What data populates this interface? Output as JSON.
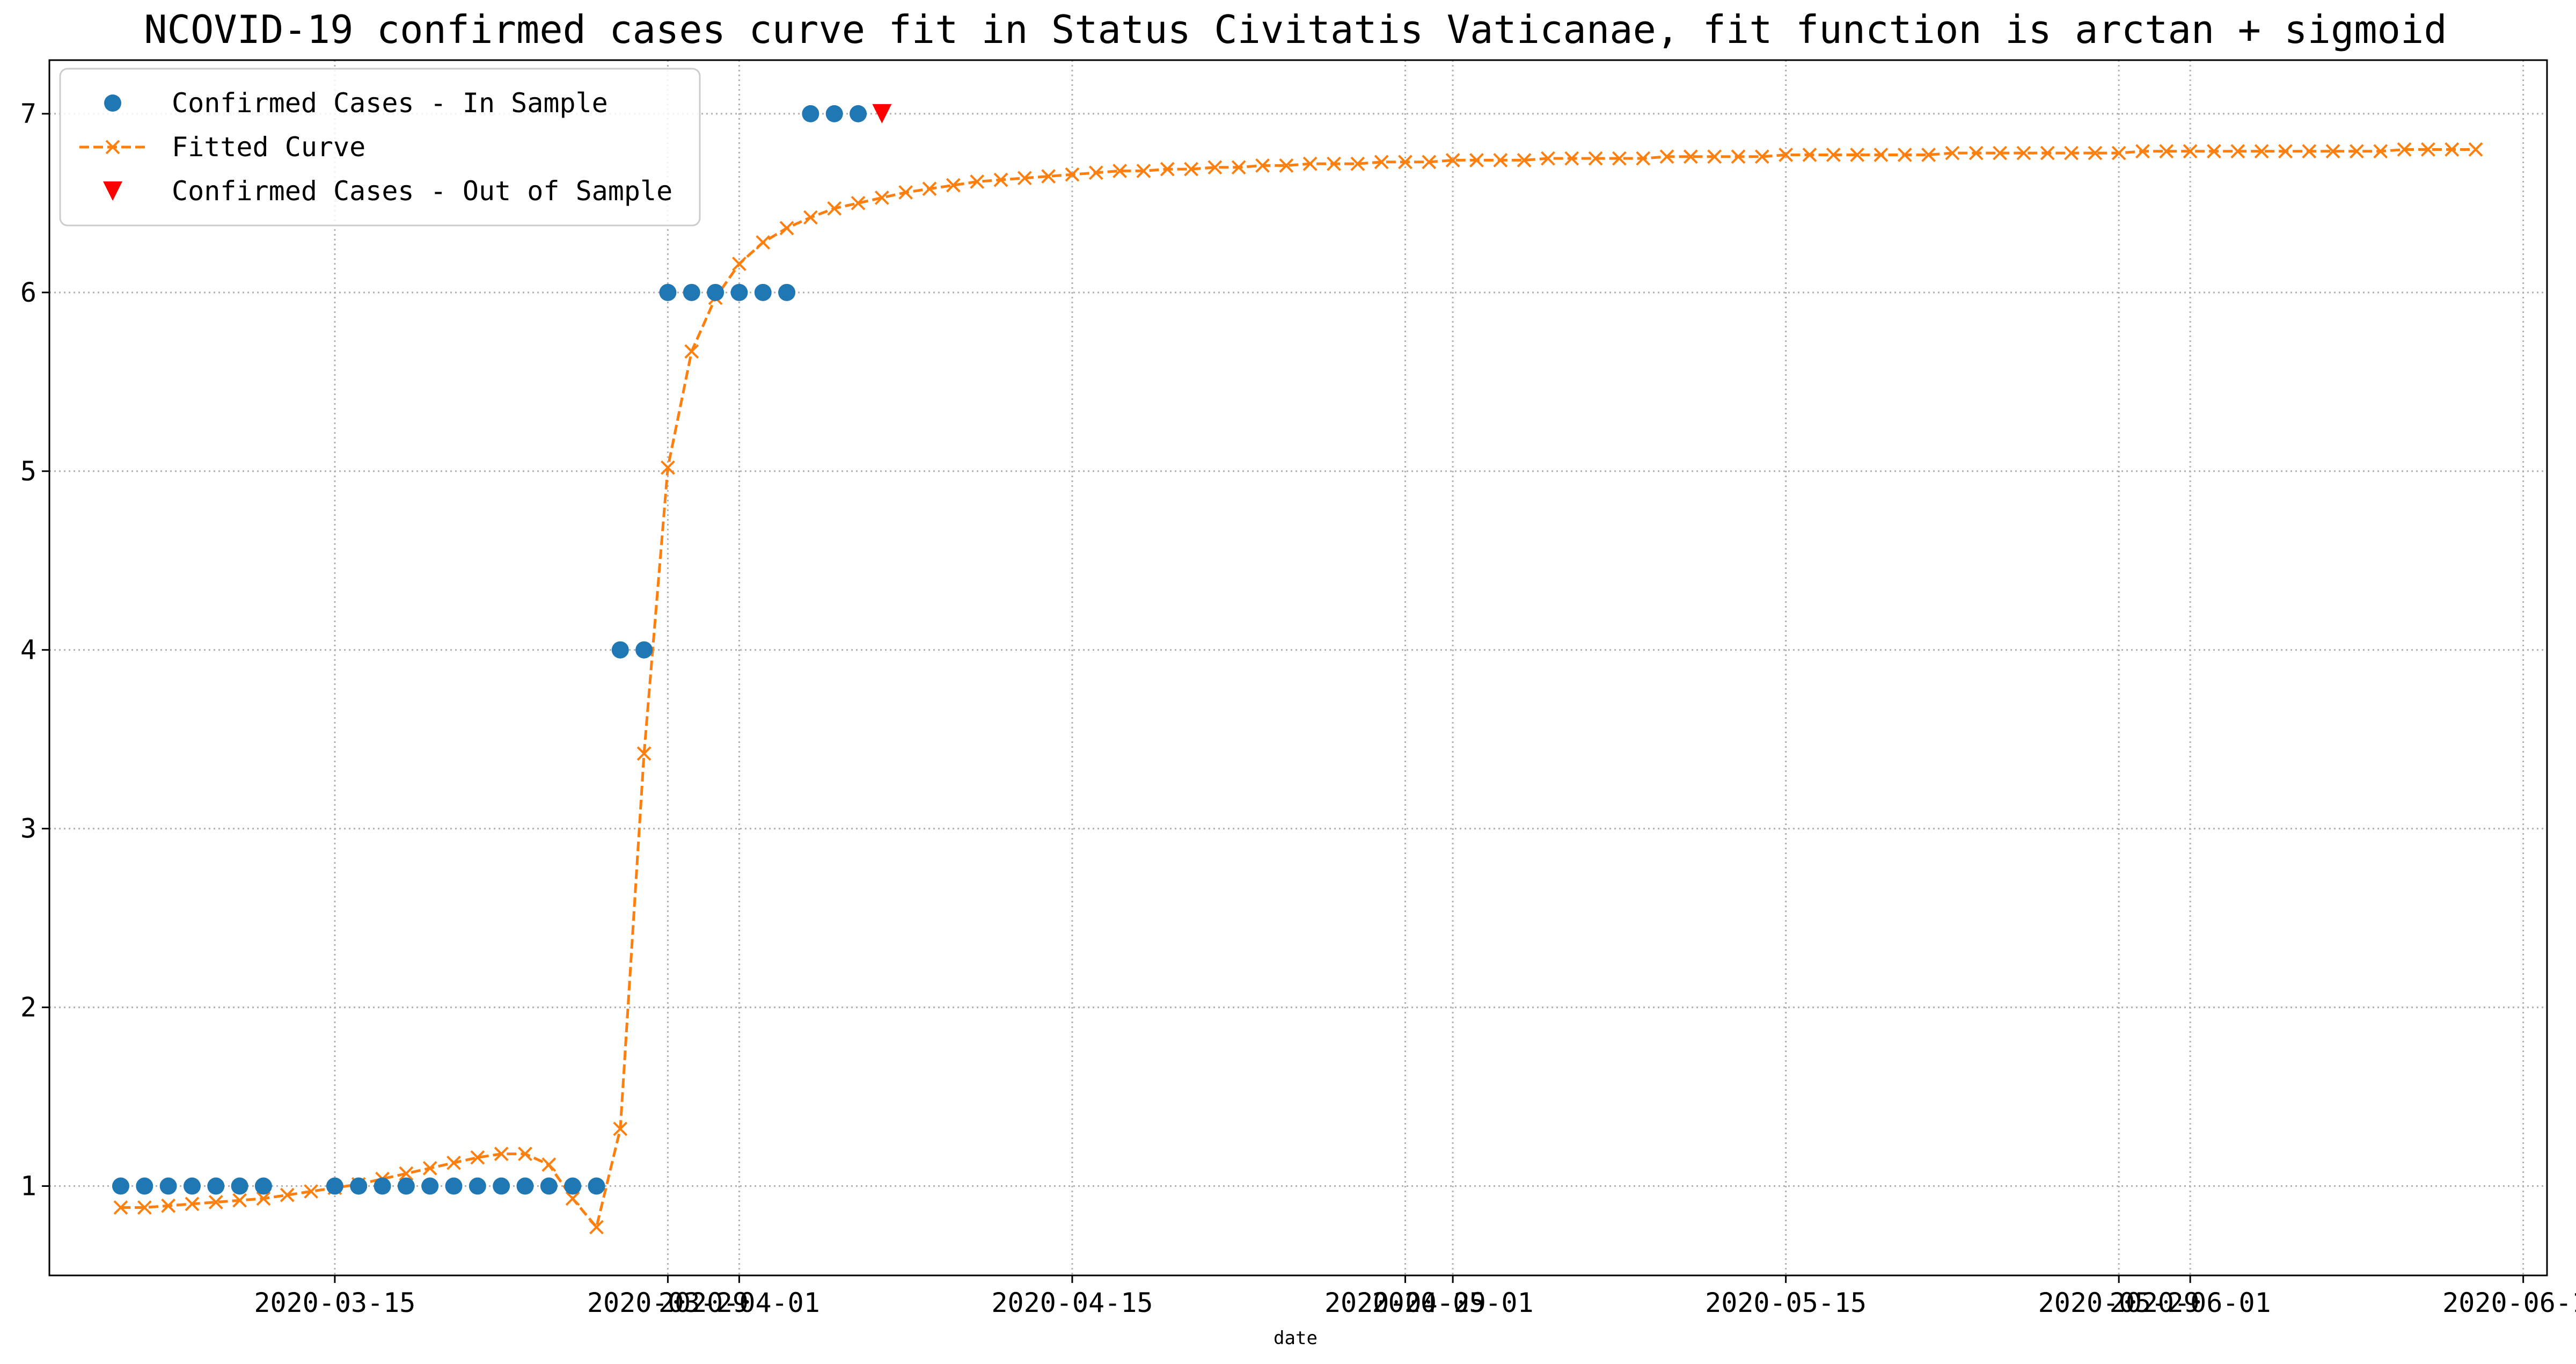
{
  "chart_data": {
    "type": "scatter",
    "title": "NCOVID-19 confirmed cases curve fit in Status Civitatis Vaticanae, fit function is arctan + sigmoid",
    "xlabel": "date",
    "ylabel": "",
    "x_start": "2020-03-06",
    "xlim": [
      "2020-03-03",
      "2020-06-16"
    ],
    "ylim": [
      0.5,
      7.3
    ],
    "yticks": [
      1,
      2,
      3,
      4,
      5,
      6,
      7
    ],
    "xticks": [
      {
        "date": "2020-03-15",
        "label": "2020-03-15"
      },
      {
        "date": "2020-03-29",
        "label": "2020-03-29"
      },
      {
        "date": "2020-04-01",
        "label": "2020-04-01"
      },
      {
        "date": "2020-04-15",
        "label": "2020-04-15"
      },
      {
        "date": "2020-04-29",
        "label": "2020-04-29"
      },
      {
        "date": "2020-05-01",
        "label": "2020-05-01"
      },
      {
        "date": "2020-05-15",
        "label": "2020-05-15"
      },
      {
        "date": "2020-05-29",
        "label": "2020-05-29"
      },
      {
        "date": "2020-06-01",
        "label": "2020-06-01"
      },
      {
        "date": "2020-06-15",
        "label": "2020-06-15"
      }
    ],
    "grid": true,
    "legend_position": "top-left",
    "series": [
      {
        "name": "Confirmed Cases - In Sample",
        "kind": "points",
        "marker": "circle",
        "color": "#1f77b4",
        "points": [
          [
            0,
            1
          ],
          [
            1,
            1
          ],
          [
            2,
            1
          ],
          [
            3,
            1
          ],
          [
            4,
            1
          ],
          [
            5,
            1
          ],
          [
            6,
            1
          ],
          [
            9,
            1
          ],
          [
            10,
            1
          ],
          [
            11,
            1
          ],
          [
            12,
            1
          ],
          [
            13,
            1
          ],
          [
            14,
            1
          ],
          [
            15,
            1
          ],
          [
            16,
            1
          ],
          [
            17,
            1
          ],
          [
            18,
            1
          ],
          [
            19,
            1
          ],
          [
            20,
            1
          ],
          [
            21,
            4
          ],
          [
            22,
            4
          ],
          [
            23,
            6
          ],
          [
            24,
            6
          ],
          [
            25,
            6
          ],
          [
            26,
            6
          ],
          [
            27,
            6
          ],
          [
            28,
            6
          ],
          [
            29,
            7
          ],
          [
            30,
            7
          ],
          [
            31,
            7
          ]
        ]
      },
      {
        "name": "Fitted Curve",
        "kind": "line",
        "marker": "x",
        "linestyle": "dashed",
        "color": "#ff7f0e",
        "start_index": 0,
        "values": [
          0.88,
          0.88,
          0.89,
          0.9,
          0.91,
          0.92,
          0.93,
          0.95,
          0.97,
          0.99,
          1.01,
          1.04,
          1.07,
          1.1,
          1.13,
          1.16,
          1.18,
          1.18,
          1.12,
          0.93,
          0.77,
          1.32,
          3.42,
          5.02,
          5.67,
          5.97,
          6.16,
          6.28,
          6.36,
          6.42,
          6.47,
          6.5,
          6.53,
          6.56,
          6.58,
          6.6,
          6.62,
          6.63,
          6.64,
          6.65,
          6.66,
          6.67,
          6.68,
          6.68,
          6.69,
          6.69,
          6.7,
          6.7,
          6.71,
          6.71,
          6.72,
          6.72,
          6.72,
          6.73,
          6.73,
          6.73,
          6.74,
          6.74,
          6.74,
          6.74,
          6.75,
          6.75,
          6.75,
          6.75,
          6.75,
          6.76,
          6.76,
          6.76,
          6.76,
          6.76,
          6.77,
          6.77,
          6.77,
          6.77,
          6.77,
          6.77,
          6.77,
          6.78,
          6.78,
          6.78,
          6.78,
          6.78,
          6.78,
          6.78,
          6.78,
          6.79,
          6.79,
          6.79,
          6.79,
          6.79,
          6.79,
          6.79,
          6.79,
          6.79,
          6.79,
          6.79,
          6.8,
          6.8,
          6.8,
          6.8
        ]
      },
      {
        "name": "Confirmed Cases - Out of Sample",
        "kind": "points",
        "marker": "triangle-down",
        "color": "#ff0000",
        "points": [
          [
            32,
            7
          ]
        ]
      }
    ]
  }
}
